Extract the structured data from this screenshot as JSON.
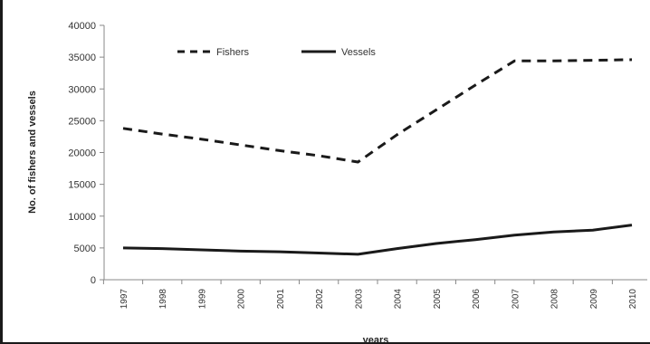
{
  "chart_data": {
    "type": "line",
    "xlabel": "years",
    "ylabel": "No. of fishers and vessels",
    "ylim": [
      0,
      40000
    ],
    "yticks": [
      "0",
      "5000",
      "10000",
      "15000",
      "20000",
      "25000",
      "30000",
      "35000",
      "40000"
    ],
    "x": [
      "1997",
      "1998",
      "1999",
      "2000",
      "2001",
      "2002",
      "2003",
      "2004",
      "2005",
      "2006",
      "2007",
      "2008",
      "2009",
      "2010"
    ],
    "legend_position": "top",
    "grid": false,
    "series": [
      {
        "name": "Fishers",
        "style": "dashed",
        "color": "#1a1a1a",
        "values": [
          23800,
          22900,
          22100,
          21200,
          20300,
          19500,
          18500,
          22800,
          26700,
          30600,
          34400,
          34400,
          34500,
          34600
        ]
      },
      {
        "name": "Vessels",
        "style": "solid",
        "color": "#1a1a1a",
        "values": [
          5000,
          4900,
          4700,
          4500,
          4400,
          4200,
          4000,
          4900,
          5700,
          6300,
          7000,
          7500,
          7800,
          8600
        ]
      }
    ]
  }
}
